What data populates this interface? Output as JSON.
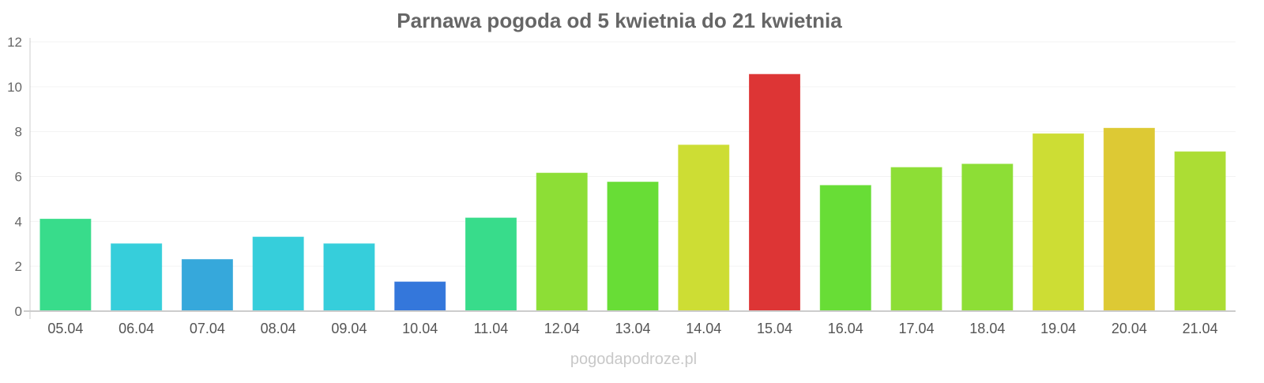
{
  "chart_data": {
    "type": "bar",
    "title": "Parnawa pogoda od 5 kwietnia do 21 kwietnia",
    "xlabel": "",
    "ylabel": "",
    "ylim": [
      0,
      12
    ],
    "yticks": [
      0,
      2,
      4,
      6,
      8,
      10,
      12
    ],
    "grid": true,
    "categories": [
      "05.04",
      "06.04",
      "07.04",
      "08.04",
      "09.04",
      "10.04",
      "11.04",
      "12.04",
      "13.04",
      "14.04",
      "15.04",
      "16.04",
      "17.04",
      "18.04",
      "19.04",
      "20.04",
      "21.04"
    ],
    "values": [
      4.1,
      3.0,
      2.3,
      3.3,
      3.0,
      1.3,
      4.15,
      6.15,
      5.75,
      7.4,
      10.55,
      5.6,
      6.4,
      6.55,
      7.9,
      8.15,
      7.1
    ],
    "colors": [
      "#38dc8b",
      "#36cedb",
      "#36a8db",
      "#36cedb",
      "#36cedb",
      "#3477db",
      "#38dc8b",
      "#8dde36",
      "#68dd36",
      "#cddd34",
      "#dd3535",
      "#68dd36",
      "#8dde36",
      "#8dde36",
      "#cddd34",
      "#ddc934",
      "#acdd34"
    ]
  },
  "watermark": "pogodapodroze.pl"
}
